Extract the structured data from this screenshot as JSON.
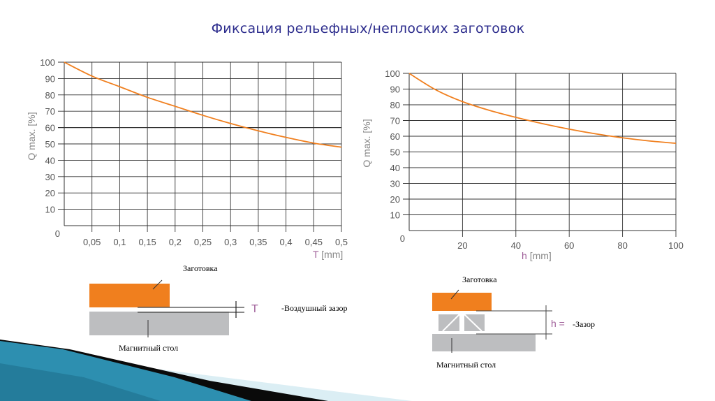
{
  "slide": {
    "title": "Фиксация рельефных/неплоских заготовок"
  },
  "chart_data": [
    {
      "type": "line",
      "title": "",
      "xlabel_symbol": "T",
      "xlabel_unit": "[mm]",
      "ylabel": "Q max. [%]",
      "xlim": [
        0,
        0.5
      ],
      "ylim": [
        0,
        100
      ],
      "grid": true,
      "x_ticks": [
        "0,05",
        "0,1",
        "0,15",
        "0,2",
        "0,25",
        "0,3",
        "0,35",
        "0,4",
        "0,45",
        "0,5"
      ],
      "x_tick_values": [
        0.05,
        0.1,
        0.15,
        0.2,
        0.25,
        0.3,
        0.35,
        0.4,
        0.45,
        0.5
      ],
      "y_ticks": [
        "10",
        "20",
        "30",
        "40",
        "50",
        "60",
        "70",
        "80",
        "90",
        "100"
      ],
      "y_tick_values": [
        10,
        20,
        30,
        40,
        50,
        60,
        70,
        80,
        90,
        100
      ],
      "origin_label": "0",
      "series": [
        {
          "name": "Q max",
          "color": "#f07f1e",
          "x": [
            0,
            0.05,
            0.1,
            0.15,
            0.2,
            0.25,
            0.3,
            0.35,
            0.4,
            0.45,
            0.5
          ],
          "y": [
            100,
            91.5,
            85,
            78.5,
            73,
            67.5,
            62.5,
            58,
            54,
            50.5,
            48
          ]
        }
      ]
    },
    {
      "type": "line",
      "title": "",
      "xlabel_symbol": "h",
      "xlabel_unit": "[mm]",
      "ylabel": "Q max. [%]",
      "xlim": [
        0,
        100
      ],
      "ylim": [
        0,
        100
      ],
      "grid": true,
      "x_ticks": [
        "20",
        "40",
        "60",
        "80",
        "100"
      ],
      "x_tick_values": [
        20,
        40,
        60,
        80,
        100
      ],
      "y_ticks": [
        "10",
        "20",
        "30",
        "40",
        "50",
        "60",
        "70",
        "80",
        "90",
        "100"
      ],
      "y_tick_values": [
        10,
        20,
        30,
        40,
        50,
        60,
        70,
        80,
        90,
        100
      ],
      "origin_label": "0",
      "series": [
        {
          "name": "Q max",
          "color": "#f07f1e",
          "x": [
            0,
            10,
            20,
            30,
            40,
            50,
            60,
            70,
            80,
            90,
            100
          ],
          "y": [
            100,
            89.5,
            82,
            76.5,
            72,
            68,
            64.5,
            61.5,
            59,
            57,
            55.5
          ]
        }
      ]
    }
  ],
  "diagram_left": {
    "workpiece_label": "Заготовка",
    "table_label": "Магнитный стол",
    "gap_symbol": "T",
    "gap_label": "-Воздушный зазор"
  },
  "diagram_right": {
    "workpiece_label": "Заготовка",
    "table_label": "Магнитный стол",
    "gap_symbol": "h =",
    "gap_label": "-Зазор"
  },
  "colors": {
    "orange": "#f07f1e",
    "gray": "#bdbec0",
    "title": "#2b2b8c",
    "symbol": "#a0609a"
  }
}
